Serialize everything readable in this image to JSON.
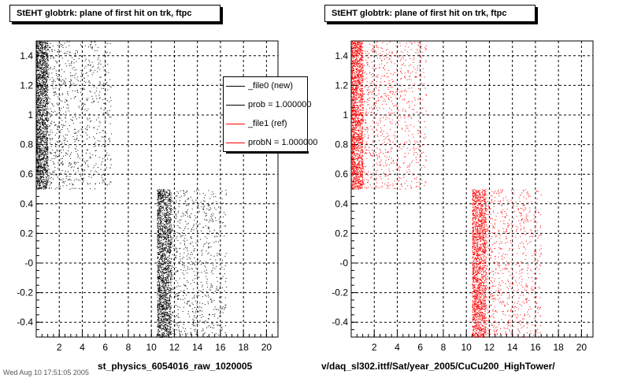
{
  "chart_data": [
    {
      "type": "scatter",
      "title": "StEHT globtrk: plane of first hit on trk, ftpc",
      "xlabel": "st_physics_6054016_raw_1020005",
      "xlim": [
        0,
        21
      ],
      "ylim": [
        -0.5,
        1.5
      ],
      "x_ticks": [
        "2",
        "4",
        "6",
        "8",
        "10",
        "12",
        "14",
        "16",
        "18",
        "20"
      ],
      "y_ticks": [
        "1.4",
        "1.2",
        "1",
        "0.8",
        "0.6",
        "0.4",
        "0.2",
        "-0",
        "-0.2",
        "-0.4"
      ],
      "grid": true,
      "series": [
        {
          "name": "_file0 (new)",
          "color": "#000000",
          "clusters": [
            {
              "x_range": [
                0.0,
                6.5
              ],
              "y_range": [
                0.5,
                1.5
              ],
              "dense_x": [
                0.0,
                1.0
              ]
            },
            {
              "x_range": [
                10.5,
                16.5
              ],
              "y_range": [
                -0.5,
                0.5
              ],
              "dense_x": [
                10.5,
                11.7
              ]
            }
          ]
        }
      ],
      "legend": {
        "placement": "top-right",
        "entries": [
          {
            "label": "_file0 (new)",
            "color": "#000000"
          },
          {
            "label": "prob = 1.000000",
            "color": "#000000"
          },
          {
            "label": "_file1 (ref)",
            "color": "#ff0000"
          },
          {
            "label": "probN = 1.000000",
            "color": "#ff0000"
          }
        ]
      }
    },
    {
      "type": "scatter",
      "title": "StEHT globtrk: plane of first hit on trk, ftpc",
      "xlabel": "v/daq_sl302.ittf/Sat/year_2005/CuCu200_HighTower/",
      "xlim": [
        0,
        21
      ],
      "ylim": [
        -0.5,
        1.5
      ],
      "x_ticks": [
        "2",
        "4",
        "6",
        "8",
        "10",
        "12",
        "14",
        "16",
        "18",
        "20"
      ],
      "y_ticks": [
        "1.4",
        "1.2",
        "1",
        "0.8",
        "0.6",
        "0.4",
        "0.2",
        "-0",
        "-0.2",
        "-0.4"
      ],
      "grid": true,
      "series": [
        {
          "name": "_file1 (ref)",
          "color": "#ff0000",
          "clusters": [
            {
              "x_range": [
                0.0,
                6.5
              ],
              "y_range": [
                0.5,
                1.5
              ],
              "dense_x": [
                0.0,
                1.0
              ]
            },
            {
              "x_range": [
                10.5,
                16.5
              ],
              "y_range": [
                -0.5,
                0.5
              ],
              "dense_x": [
                10.5,
                11.7
              ]
            }
          ]
        }
      ]
    }
  ],
  "footer": "Wed Aug 10 17:51:05 2005"
}
